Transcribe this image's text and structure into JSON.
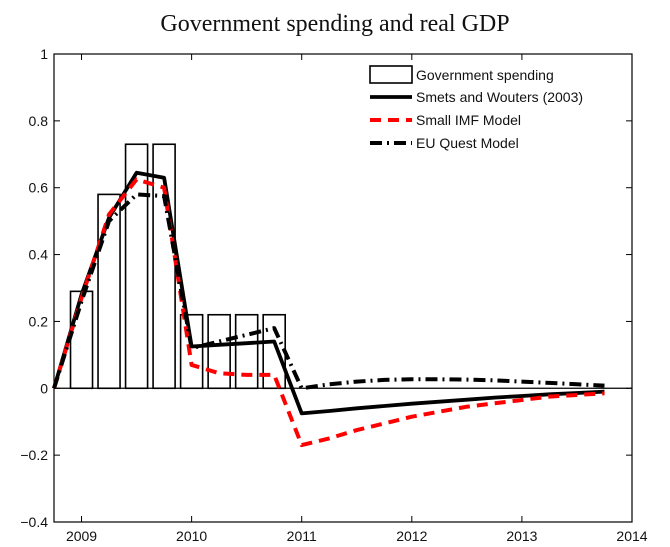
{
  "chart_data": {
    "type": "bar+line",
    "title": "Government spending and real GDP",
    "xlabel": "",
    "ylabel": "",
    "xlim": [
      2008.75,
      2014.0
    ],
    "ylim": [
      -0.4,
      1.0
    ],
    "xticks": [
      2009,
      2010,
      2011,
      2012,
      2013,
      2014
    ],
    "xtick_labels": [
      "2009",
      "2010",
      "2011",
      "2012",
      "2013",
      "2014"
    ],
    "yticks": [
      -0.4,
      -0.2,
      0,
      0.2,
      0.4,
      0.6,
      0.8,
      1.0
    ],
    "ytick_labels": [
      "−0.4",
      "−0.2",
      "0",
      "0.2",
      "0.4",
      "0.6",
      "0.8",
      "1"
    ],
    "grid": false,
    "legend_position": "top-right",
    "bars": {
      "name": "Government spending",
      "x": [
        2009.0,
        2009.25,
        2009.5,
        2009.75,
        2010.0,
        2010.25,
        2010.5,
        2010.75
      ],
      "values": [
        0.29,
        0.58,
        0.73,
        0.73,
        0.22,
        0.22,
        0.22,
        0.22
      ],
      "width": 0.2,
      "fill": "#ffffff",
      "stroke": "#000000"
    },
    "series": [
      {
        "name": "Smets and Wouters (2003)",
        "color": "#000000",
        "style": "solid",
        "x": [
          2008.75,
          2009.0,
          2009.25,
          2009.5,
          2009.75,
          2010.0,
          2010.25,
          2010.5,
          2010.75,
          2011.0,
          2011.25,
          2011.5,
          2011.75,
          2012.0,
          2012.25,
          2012.5,
          2012.75,
          2013.0,
          2013.25,
          2013.5,
          2013.75
        ],
        "values": [
          0.0,
          0.28,
          0.51,
          0.645,
          0.63,
          0.125,
          0.13,
          0.135,
          0.14,
          -0.075,
          -0.068,
          -0.06,
          -0.053,
          -0.046,
          -0.04,
          -0.034,
          -0.028,
          -0.023,
          -0.018,
          -0.014,
          -0.01
        ]
      },
      {
        "name": "Small IMF Model",
        "color": "#ff0000",
        "style": "dashed",
        "x": [
          2008.75,
          2009.0,
          2009.25,
          2009.5,
          2009.75,
          2010.0,
          2010.25,
          2010.5,
          2010.75,
          2011.0,
          2011.25,
          2011.5,
          2011.75,
          2012.0,
          2012.25,
          2012.5,
          2012.75,
          2013.0,
          2013.25,
          2013.5,
          2013.75
        ],
        "values": [
          0.0,
          0.27,
          0.52,
          0.625,
          0.6,
          0.07,
          0.045,
          0.04,
          0.04,
          -0.17,
          -0.15,
          -0.125,
          -0.105,
          -0.085,
          -0.07,
          -0.055,
          -0.045,
          -0.035,
          -0.025,
          -0.02,
          -0.015
        ]
      },
      {
        "name": "EU Quest Model",
        "color": "#000000",
        "style": "dashdot",
        "x": [
          2008.75,
          2009.0,
          2009.25,
          2009.5,
          2009.75,
          2010.0,
          2010.25,
          2010.5,
          2010.75,
          2011.0,
          2011.25,
          2011.5,
          2011.75,
          2012.0,
          2012.25,
          2012.5,
          2012.75,
          2013.0,
          2013.25,
          2013.5,
          2013.75
        ],
        "values": [
          0.0,
          0.26,
          0.5,
          0.58,
          0.575,
          0.12,
          0.14,
          0.16,
          0.18,
          0.0,
          0.012,
          0.02,
          0.025,
          0.027,
          0.027,
          0.026,
          0.024,
          0.02,
          0.016,
          0.012,
          0.008
        ]
      }
    ]
  }
}
